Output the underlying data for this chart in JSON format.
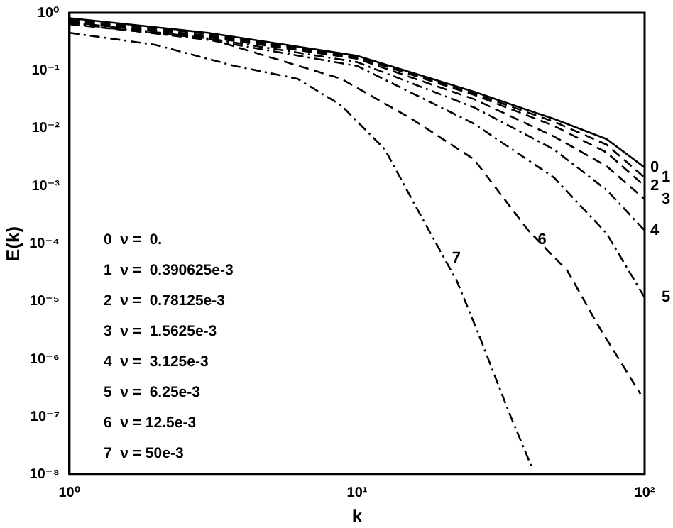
{
  "chart_data": {
    "type": "line",
    "xlabel": "k",
    "ylabel": "E(k)",
    "log": "xy",
    "grid": false,
    "legend": false,
    "marker": "none",
    "xlim": [
      1,
      100
    ],
    "xticks": [
      {
        "value": 1,
        "label": "10⁰"
      },
      {
        "value": 10,
        "label": "10¹"
      },
      {
        "value": 100,
        "label": "10²"
      }
    ],
    "ylim": [
      1e-08,
      1
    ],
    "yticks": [
      {
        "value": 1e-08,
        "label": "10⁻⁸"
      },
      {
        "value": 1e-07,
        "label": "10⁻⁷"
      },
      {
        "value": 1e-06,
        "label": "10⁻⁶"
      },
      {
        "value": 1e-05,
        "label": "10⁻⁵"
      },
      {
        "value": 0.0001,
        "label": "10⁻⁴"
      },
      {
        "value": 0.001,
        "label": "10⁻³"
      },
      {
        "value": 0.01,
        "label": "10⁻²"
      },
      {
        "value": 0.1,
        "label": "10⁻¹"
      },
      {
        "value": 1,
        "label": "10⁰"
      }
    ],
    "x": [
      1,
      3.03,
      10,
      25.5,
      48.4,
      73.8,
      100
    ],
    "series": [
      {
        "name": "0",
        "color": "#000000",
        "line_style": "solid",
        "values": [
          0.81,
          0.45,
          0.18,
          0.043,
          0.0145,
          0.0065,
          0.0021
        ]
      },
      {
        "name": "1",
        "color": "#000000",
        "line_style": "dashed",
        "values": [
          0.76,
          0.43,
          0.17,
          0.04,
          0.013,
          0.0052,
          0.0014
        ]
      },
      {
        "name": "2",
        "color": "#000000",
        "line_style": "dashed",
        "values": [
          0.72,
          0.4,
          0.17,
          0.038,
          0.011,
          0.0038,
          0.001
        ]
      },
      {
        "name": "3",
        "color": "#000000",
        "line_style": "dashed",
        "values": [
          0.69,
          0.38,
          0.16,
          0.032,
          0.0072,
          0.0022,
          0.00059
        ]
      },
      {
        "name": "4",
        "color": "#000000",
        "line_style": "dashdot",
        "values": [
          0.69,
          0.36,
          0.14,
          0.023,
          0.0043,
          0.00085,
          0.00017
        ]
      },
      {
        "name": "5",
        "color": "#000000",
        "line_style": "dashdot",
        "values": [
          0.66,
          0.34,
          0.12,
          0.012,
          0.0014,
          0.00015,
          1.17e-05
        ]
      },
      {
        "name": "6",
        "color": "#000000",
        "line_style": "dashed",
        "x": [
          1,
          3.03,
          8.8,
          15.5,
          25.5,
          39.4,
          53.9,
          68.6,
          96.7
        ],
        "values": [
          0.63,
          0.36,
          0.072,
          0.0145,
          0.0029,
          0.00017,
          3.4e-05,
          4e-06,
          2.5e-07
        ]
      },
      {
        "name": "7",
        "color": "#000000",
        "line_style": "dashdot",
        "x": [
          1,
          1.98,
          3.75,
          6.2,
          8.8,
          12.5,
          16.7,
          22.2,
          26.4,
          34,
          40.4
        ],
        "values": [
          0.45,
          0.28,
          0.12,
          0.072,
          0.025,
          0.0043,
          0.0003,
          2.3e-05,
          2.8e-06,
          1.1e-07,
          1.4e-08
        ]
      }
    ],
    "annotations": [
      "0  ν =  0.",
      "1  ν =  0.390625e-3",
      "2  ν =  0.78125e-3",
      "3  ν =  1.5625e-3",
      "4  ν =  3.125e-3",
      "5  ν =  6.25e-3",
      "6  ν = 12.5e-3",
      "7  ν = 50e-3"
    ]
  }
}
